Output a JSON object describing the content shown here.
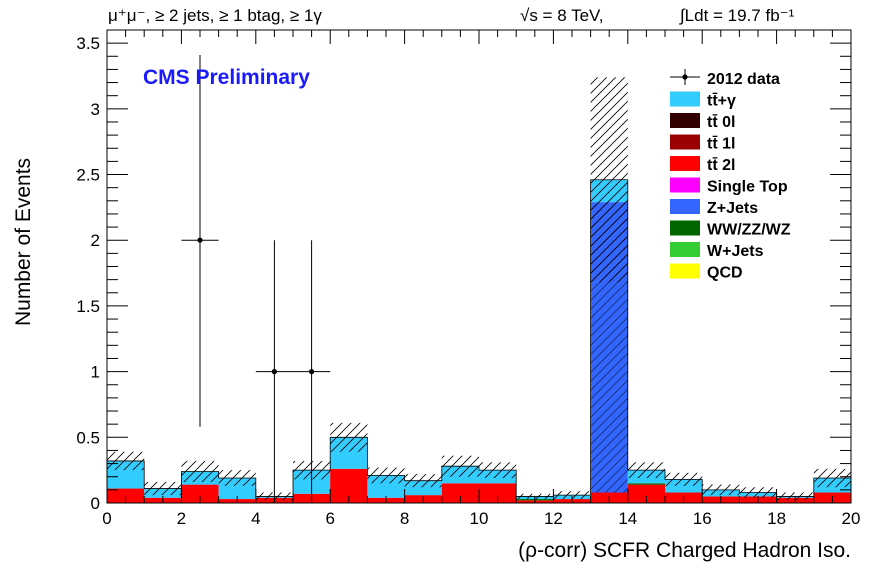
{
  "chart_data": {
    "type": "bar",
    "stacked": true,
    "header": {
      "selection": "μ⁺μ⁻, ≥ 2 jets, ≥ 1 btag, ≥ 1γ",
      "energy": "√s = 8 TeV,",
      "lumi": "∫Ldt = 19.7 fb⁻¹"
    },
    "annotation": "CMS Preliminary",
    "xlabel": "(ρ-corr) SCFR Charged Hadron Iso.",
    "ylabel": "Number of Events",
    "xlim": [
      0,
      20
    ],
    "ylim": [
      0,
      3.6
    ],
    "xticks": [
      "0",
      "2",
      "4",
      "6",
      "8",
      "10",
      "12",
      "14",
      "16",
      "18",
      "20"
    ],
    "yticks": [
      "0",
      "0.5",
      "1",
      "1.5",
      "2",
      "2.5",
      "3",
      "3.5"
    ],
    "bin_edges": [
      0,
      1,
      2,
      3,
      4,
      5,
      6,
      7,
      8,
      9,
      10,
      11,
      12,
      13,
      14,
      15,
      16,
      17,
      18,
      19,
      20
    ],
    "series": [
      {
        "name": "tt̄ 2l",
        "color": "#ff0000",
        "values": [
          0.11,
          0.04,
          0.14,
          0.03,
          0.04,
          0.07,
          0.26,
          0.04,
          0.06,
          0.15,
          0.15,
          0.02,
          0.03,
          0.08,
          0.14,
          0.08,
          0.05,
          0.05,
          0.04,
          0.08
        ]
      },
      {
        "name": "Z+Jets",
        "color": "#3366ff",
        "values": [
          0,
          0,
          0,
          0,
          0,
          0,
          0,
          0,
          0,
          0,
          0,
          0,
          0,
          2.21,
          0,
          0,
          0,
          0,
          0,
          0
        ]
      },
      {
        "name": "WW/ZZ/WZ",
        "color": "#006600",
        "values": [
          0,
          0,
          0,
          0,
          0,
          0,
          0,
          0,
          0,
          0,
          0,
          0.01,
          0,
          0,
          0.01,
          0,
          0,
          0,
          0,
          0
        ]
      },
      {
        "name": "tt̄+γ",
        "color": "#33ccff",
        "values": [
          0.21,
          0.07,
          0.1,
          0.16,
          0.01,
          0.18,
          0.24,
          0.17,
          0.11,
          0.13,
          0.1,
          0.02,
          0.03,
          0.17,
          0.1,
          0.1,
          0.05,
          0.03,
          0.01,
          0.11
        ]
      }
    ],
    "uncertainty": [
      0.07,
      0.05,
      0.08,
      0.06,
      0.03,
      0.07,
      0.11,
      0.06,
      0.05,
      0.08,
      0.06,
      0.02,
      0.03,
      0.78,
      0.06,
      0.05,
      0.04,
      0.04,
      0.03,
      0.07
    ],
    "data_points": [
      {
        "x": 2.5,
        "y": 2,
        "yerr_low": 1.42,
        "yerr_high": 1.41
      },
      {
        "x": 4.5,
        "y": 1,
        "yerr_low": 1.0,
        "yerr_high": 1.0
      },
      {
        "x": 5.5,
        "y": 1,
        "yerr_low": 1.0,
        "yerr_high": 1.0
      }
    ],
    "legend_position": "top-right",
    "legend": [
      {
        "label": "2012 data",
        "kind": "marker",
        "color": "#000000"
      },
      {
        "label": "tt̄+γ",
        "kind": "box",
        "color": "#33ccff"
      },
      {
        "label": "tt̄ 0l",
        "kind": "box",
        "color": "#330000"
      },
      {
        "label": "tt̄ 1l",
        "kind": "box",
        "color": "#990000"
      },
      {
        "label": "tt̄ 2l",
        "kind": "box",
        "color": "#ff0000"
      },
      {
        "label": "Single Top",
        "kind": "box",
        "color": "#ff00ff"
      },
      {
        "label": "Z+Jets",
        "kind": "box",
        "color": "#3366ff"
      },
      {
        "label": "WW/ZZ/WZ",
        "kind": "box",
        "color": "#006600"
      },
      {
        "label": "W+Jets",
        "kind": "box",
        "color": "#33cc33"
      },
      {
        "label": "QCD",
        "kind": "box",
        "color": "#ffff00"
      }
    ]
  }
}
